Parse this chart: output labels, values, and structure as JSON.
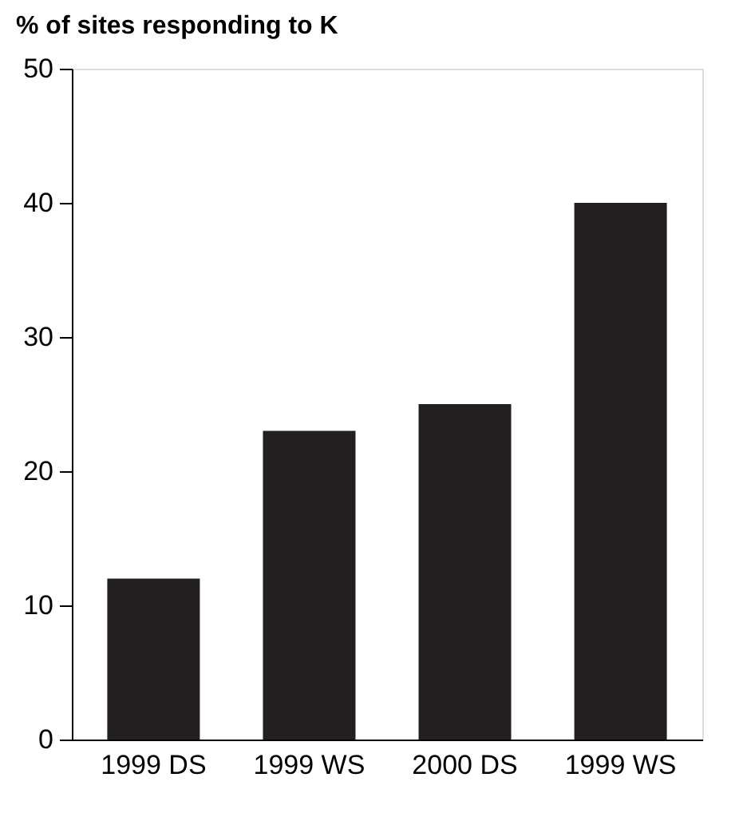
{
  "chart_data": {
    "type": "bar",
    "title": "% of sites responding to K",
    "categories": [
      "1999 DS",
      "1999 WS",
      "2000 DS",
      "1999 WS"
    ],
    "values": [
      12,
      23,
      25,
      40
    ],
    "color": "#231f20",
    "ylim": [
      0,
      50
    ],
    "yticks": [
      0,
      10,
      20,
      30,
      40,
      50
    ],
    "grid": false
  }
}
